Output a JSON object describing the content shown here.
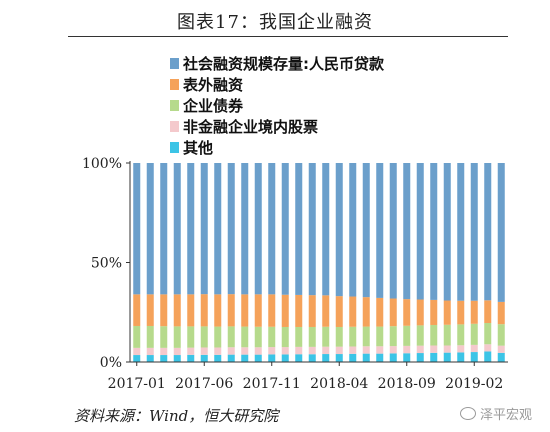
{
  "title": "图表17：我国企业融资",
  "source": "资料来源：Wind，恒大研究院",
  "watermark": "泽平宏观",
  "chart_data": {
    "type": "bar",
    "stacked": true,
    "percent": true,
    "title": "图表17：我国企业融资",
    "xlabel": "",
    "ylabel": "",
    "ylim": [
      0,
      100
    ],
    "yticks": [
      "0%",
      "50%",
      "100%"
    ],
    "xtick_labels": [
      "2017-01",
      "2017-06",
      "2017-11",
      "2018-04",
      "2018-09",
      "2019-02"
    ],
    "legend_position": "top-left",
    "categories": [
      "2017-01",
      "2017-02",
      "2017-03",
      "2017-04",
      "2017-05",
      "2017-06",
      "2017-07",
      "2017-08",
      "2017-09",
      "2017-10",
      "2017-11",
      "2017-12",
      "2018-01",
      "2018-02",
      "2018-03",
      "2018-04",
      "2018-05",
      "2018-06",
      "2018-07",
      "2018-08",
      "2018-09",
      "2018-10",
      "2018-11",
      "2018-12",
      "2019-01",
      "2019-02",
      "2019-03",
      "2019-04"
    ],
    "series": [
      {
        "name": "其他",
        "color": "#3cc4e6",
        "values": [
          3.5,
          3.5,
          3.5,
          3.5,
          3.6,
          3.6,
          3.6,
          3.7,
          3.7,
          3.7,
          3.8,
          3.8,
          3.9,
          3.9,
          4.0,
          4.0,
          4.1,
          4.2,
          4.2,
          4.3,
          4.4,
          4.5,
          4.6,
          4.7,
          4.8,
          5.0,
          5.3,
          4.6
        ]
      },
      {
        "name": "非金融企业境内股票",
        "color": "#f4c9cc",
        "values": [
          3.6,
          3.6,
          3.6,
          3.6,
          3.6,
          3.7,
          3.7,
          3.7,
          3.7,
          3.7,
          3.7,
          3.7,
          3.7,
          3.7,
          3.7,
          3.7,
          3.7,
          3.7,
          3.7,
          3.7,
          3.7,
          3.7,
          3.7,
          3.6,
          3.6,
          3.6,
          3.6,
          3.6
        ]
      },
      {
        "name": "企业债券",
        "color": "#b6da8c",
        "values": [
          11.0,
          11.0,
          10.9,
          10.8,
          10.7,
          10.6,
          10.5,
          10.5,
          10.4,
          10.3,
          10.2,
          10.1,
          10.0,
          10.0,
          10.0,
          9.9,
          9.9,
          9.9,
          9.9,
          10.0,
          10.1,
          10.2,
          10.3,
          10.4,
          10.5,
          10.6,
          10.7,
          10.8
        ]
      },
      {
        "name": "表外融资",
        "color": "#f5a25a",
        "values": [
          15.9,
          15.9,
          16.0,
          16.1,
          16.1,
          16.2,
          16.2,
          16.2,
          16.2,
          16.3,
          16.3,
          16.2,
          16.1,
          16.0,
          15.8,
          15.5,
          15.2,
          14.8,
          14.4,
          13.9,
          13.4,
          13.0,
          12.6,
          12.2,
          11.9,
          11.6,
          11.4,
          11.2
        ]
      },
      {
        "name": "社会融资规模存量:人民币贷款",
        "color": "#6b9fcb",
        "values": [
          66.0,
          66.0,
          66.0,
          66.0,
          66.0,
          65.9,
          66.0,
          65.9,
          66.0,
          66.0,
          66.0,
          66.2,
          66.3,
          66.4,
          66.5,
          66.9,
          67.1,
          67.4,
          67.8,
          68.1,
          68.4,
          68.6,
          68.8,
          69.1,
          69.2,
          69.2,
          69.0,
          69.8
        ]
      }
    ]
  }
}
